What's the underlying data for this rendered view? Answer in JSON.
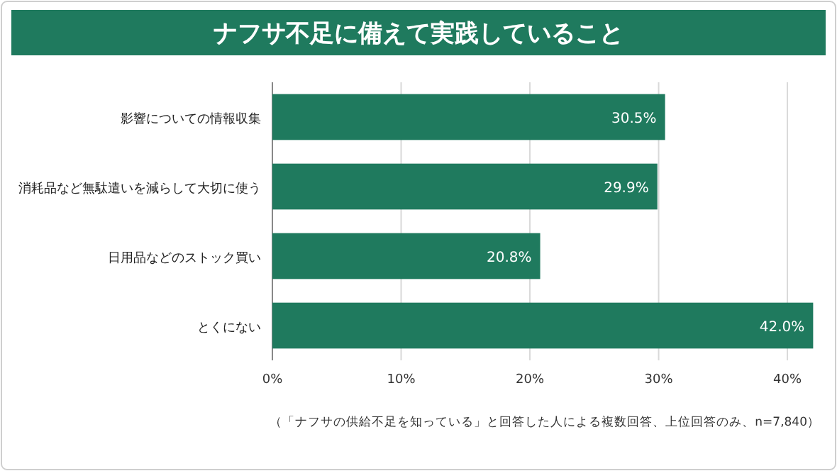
{
  "chart_data": {
    "type": "bar",
    "orientation": "horizontal",
    "title": "ナフサ不足に備えて実践していること",
    "categories": [
      "影響についての情報収集",
      "消耗品など無駄遣いを減らして大切に使う",
      "日用品などのストック買い",
      "とくにない"
    ],
    "values": [
      30.5,
      29.9,
      20.8,
      42.0
    ],
    "color": "#1f7a5e",
    "value_labels": [
      "30.5%",
      "29.9%",
      "20.8%",
      "42.0%"
    ],
    "xlim": [
      0,
      42.2
    ],
    "xticks": [
      {
        "value": 0,
        "label": "0%"
      },
      {
        "value": 10,
        "label": "10%"
      },
      {
        "value": 20,
        "label": "20%"
      },
      {
        "value": 30,
        "label": "30%"
      },
      {
        "value": 40,
        "label": "40%"
      }
    ],
    "grid": "x",
    "annotations": [
      "（「ナフサの供給不足を知っている」と回答した人による複数回答、上位回答のみ、n=7,840）"
    ]
  }
}
